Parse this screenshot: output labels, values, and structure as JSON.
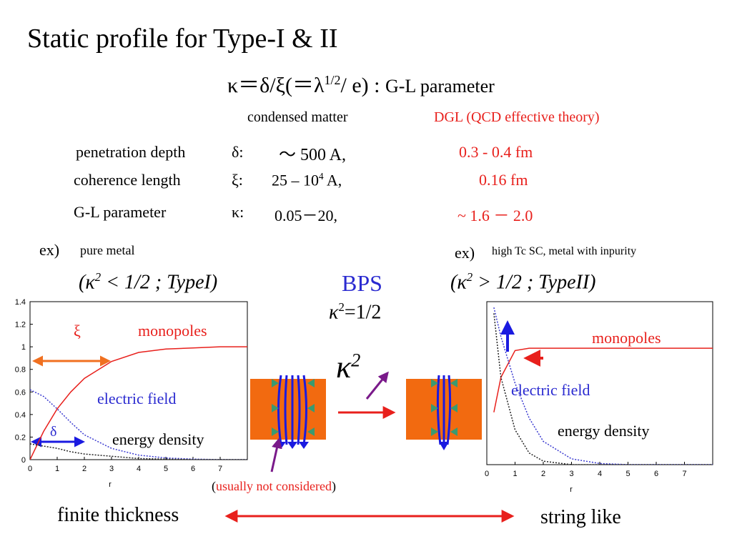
{
  "title": "Static profile for Type-I & II",
  "formula": {
    "lhs": "κ＝δ/ξ(＝λ",
    "sup": "1/2",
    "rest": "/ e) :",
    "label": "G-L parameter"
  },
  "columns": {
    "condensed": "condensed matter",
    "dgl": "DGL (QCD effective theory)"
  },
  "rows": [
    {
      "name": "penetration depth",
      "symbol": "δ:",
      "condensed": "～ 500 A,",
      "dgl": "0.3 - 0.4 fm"
    },
    {
      "name": "coherence length",
      "symbol": "ξ:",
      "condensed": "25 – 10",
      "condensed_sup": "4",
      "condensed_post": "A,",
      "dgl": "0.16 fm"
    },
    {
      "name": "G-L parameter",
      "symbol": "κ:",
      "condensed": "0.05－20,",
      "dgl": "~ 1.6 － 2.0"
    }
  ],
  "left": {
    "ex": "ex)",
    "desc": "pure metal",
    "cond_pre": "(κ",
    "cond_sup": "2",
    "cond_post": "< 1/2 ; TypeI)"
  },
  "right": {
    "ex": "ex)",
    "desc": "high Tc SC, metal with inpurity",
    "cond_pre": "(κ",
    "cond_sup": "2",
    "cond_post": "> 1/2 ; TypeII)"
  },
  "bps": {
    "label": "BPS",
    "kappa": "κ",
    "sup": "2",
    "eq": "=1/2"
  },
  "kappa_big": {
    "kappa": "κ",
    "sup": "2"
  },
  "note": {
    "open": "(",
    "text": "usually not considered",
    "close": ")"
  },
  "bottom": {
    "left": "finite thickness",
    "right": "string like"
  },
  "plots": [
    {
      "type": "line",
      "xlabel": "r",
      "xlim": [
        0,
        8
      ],
      "ylim": [
        0,
        1.4
      ],
      "xticks": [
        0,
        1,
        2,
        3,
        4,
        5,
        6,
        7
      ],
      "yticks": [
        0,
        0.2,
        0.4,
        0.6,
        0.8,
        1,
        1.2,
        1.4
      ],
      "x": [
        0,
        0.5,
        1,
        1.5,
        2,
        3,
        4,
        5,
        6,
        7,
        8
      ],
      "annotations": [
        "ξ",
        "δ"
      ],
      "series": [
        {
          "name": "monopoles",
          "color": "#e8201c",
          "values": [
            0,
            0.25,
            0.45,
            0.6,
            0.72,
            0.87,
            0.95,
            0.98,
            0.99,
            1,
            1
          ]
        },
        {
          "name": "electric field",
          "color": "#3a3ad0",
          "values": [
            0.62,
            0.56,
            0.45,
            0.33,
            0.22,
            0.1,
            0.04,
            0.015,
            0.005,
            0,
            0
          ]
        },
        {
          "name": "energy density",
          "color": "#222222",
          "values": [
            0.14,
            0.12,
            0.1,
            0.07,
            0.05,
            0.03,
            0.01,
            0.005,
            0,
            0,
            0
          ]
        }
      ]
    },
    {
      "type": "line",
      "xlabel": "r",
      "xlim": [
        0,
        8
      ],
      "ylim": [
        0,
        1.4
      ],
      "xticks": [
        0,
        1,
        2,
        3,
        4,
        5,
        6,
        7
      ],
      "x": [
        0.25,
        0.5,
        1,
        1.5,
        2,
        3,
        4,
        5,
        6,
        7,
        8
      ],
      "series": [
        {
          "name": "monopoles",
          "color": "#e8201c",
          "values": [
            0.45,
            0.75,
            0.98,
            1,
            1,
            1,
            1,
            1,
            1,
            1,
            1
          ]
        },
        {
          "name": "electric field",
          "color": "#3a3ad0",
          "values": [
            1.35,
            1.1,
            0.7,
            0.4,
            0.2,
            0.05,
            0.01,
            0,
            0,
            0,
            0
          ]
        },
        {
          "name": "energy density",
          "color": "#222222",
          "values": [
            1.3,
            0.75,
            0.3,
            0.1,
            0.03,
            0,
            0,
            0,
            0,
            0,
            0
          ]
        }
      ]
    }
  ]
}
